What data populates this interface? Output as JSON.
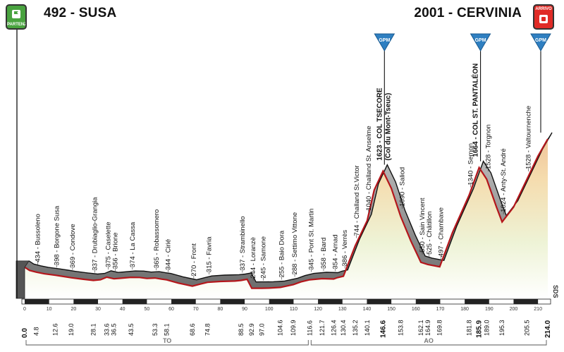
{
  "header": {
    "start_title": "492 - SUSA",
    "finish_title": "2001 - CERVINIA",
    "start_badge": "PARTENZA",
    "finish_badge": "ARRIVO"
  },
  "sponsor_text": "SDS",
  "chart_data": {
    "type": "area",
    "title": "",
    "xlabel": "",
    "ylabel": "",
    "xlim": [
      0,
      214.0
    ],
    "ylim": [
      0,
      2100
    ],
    "start": {
      "km": 0.0,
      "alt": 492,
      "name": "SUSA"
    },
    "finish": {
      "km": 214.0,
      "alt": 2001,
      "name": "CERVINIA"
    },
    "profile": [
      [
        0,
        492
      ],
      [
        2,
        455
      ],
      [
        4.8,
        434
      ],
      [
        8,
        415
      ],
      [
        12.6,
        398
      ],
      [
        16,
        383
      ],
      [
        19.0,
        369
      ],
      [
        24,
        350
      ],
      [
        28.1,
        337
      ],
      [
        31,
        345
      ],
      [
        33.6,
        375
      ],
      [
        36.5,
        356
      ],
      [
        39,
        362
      ],
      [
        43.5,
        374
      ],
      [
        47,
        372
      ],
      [
        50,
        360
      ],
      [
        53.3,
        365
      ],
      [
        56,
        352
      ],
      [
        58.1,
        344
      ],
      [
        63,
        305
      ],
      [
        68.6,
        270
      ],
      [
        72,
        295
      ],
      [
        74.8,
        315
      ],
      [
        80,
        325
      ],
      [
        86,
        330
      ],
      [
        88.5,
        337
      ],
      [
        91,
        350
      ],
      [
        92.9,
        244
      ],
      [
        95,
        245
      ],
      [
        97.0,
        245
      ],
      [
        100,
        247
      ],
      [
        104.6,
        255
      ],
      [
        109.9,
        288
      ],
      [
        113,
        320
      ],
      [
        116.6,
        345
      ],
      [
        121.7,
        358
      ],
      [
        126.4,
        354
      ],
      [
        128,
        370
      ],
      [
        130.4,
        386
      ],
      [
        135.2,
        744
      ],
      [
        140.1,
        1040
      ],
      [
        143,
        1400
      ],
      [
        146.6,
        1623
      ],
      [
        150,
        1420
      ],
      [
        153.8,
        1090
      ],
      [
        158,
        800
      ],
      [
        162.1,
        550
      ],
      [
        164.9,
        525
      ],
      [
        169.8,
        497
      ],
      [
        175,
        900
      ],
      [
        181.8,
        1340
      ],
      [
        185.9,
        1664
      ],
      [
        189.0,
        1528
      ],
      [
        193,
        1200
      ],
      [
        195.3,
        1024
      ],
      [
        200,
        1200
      ],
      [
        205.5,
        1528
      ],
      [
        210,
        1800
      ],
      [
        214.0,
        2001
      ]
    ],
    "places": [
      {
        "km": 4.8,
        "alt": "434",
        "name": "Bussoleno"
      },
      {
        "km": 12.6,
        "alt": "398",
        "name": "Borgone Susa"
      },
      {
        "km": 19.0,
        "alt": "369",
        "name": "Condove"
      },
      {
        "km": 28.1,
        "alt": "337",
        "name": "Drubiaglio-Grangia"
      },
      {
        "km": 33.6,
        "alt": "375",
        "name": "Caselette"
      },
      {
        "km": 36.5,
        "alt": "356",
        "name": "Brione"
      },
      {
        "km": 43.5,
        "alt": "374",
        "name": "La Cassa"
      },
      {
        "km": 53.3,
        "alt": "365",
        "name": "Robassomero"
      },
      {
        "km": 58.1,
        "alt": "344",
        "name": "Cirié"
      },
      {
        "km": 68.6,
        "alt": "270",
        "name": "Front"
      },
      {
        "km": 74.8,
        "alt": "315",
        "name": "Favria"
      },
      {
        "km": 88.5,
        "alt": "337",
        "name": "Strambinello"
      },
      {
        "km": 92.9,
        "alt": "244",
        "name": "Loranzè"
      },
      {
        "km": 97.0,
        "alt": "245",
        "name": "Samone"
      },
      {
        "km": 104.6,
        "alt": "255",
        "name": "Baio Dora"
      },
      {
        "km": 109.9,
        "alt": "288",
        "name": "Settimo Vittone"
      },
      {
        "km": 116.6,
        "alt": "345",
        "name": "Pont St. Martin"
      },
      {
        "km": 121.7,
        "alt": "358",
        "name": "Bard"
      },
      {
        "km": 126.4,
        "alt": "354",
        "name": "Arnad"
      },
      {
        "km": 130.4,
        "alt": "386",
        "name": "Verrès"
      },
      {
        "km": 135.2,
        "alt": "744",
        "name": "Challand St.Victor"
      },
      {
        "km": 140.1,
        "alt": "1040",
        "name": "Challand St. Anselme"
      },
      {
        "km": 153.8,
        "alt": "1090",
        "name": "Saliod"
      },
      {
        "km": 162.1,
        "alt": "550",
        "name": "Sain Vincent"
      },
      {
        "km": 164.9,
        "alt": "525",
        "name": "Châtillon"
      },
      {
        "km": 169.8,
        "alt": "497",
        "name": "Chambave"
      },
      {
        "km": 181.8,
        "alt": "1340",
        "name": "Semon"
      },
      {
        "km": 189.0,
        "alt": "1528",
        "name": "Torgnon"
      },
      {
        "km": 195.3,
        "alt": "1024",
        "name": "Anty-St. André"
      },
      {
        "km": 205.5,
        "alt": "1528",
        "name": "Valtournenche"
      }
    ],
    "climbs": [
      {
        "km": 146.6,
        "alt": "1623",
        "name": "COL TSECORE",
        "sub": "(Col du Mont-Tseuc)",
        "marker": "GPM"
      },
      {
        "km": 185.9,
        "alt": "1664",
        "name": "COL ST. PANTALÉON",
        "marker": "GPM"
      },
      {
        "km": 214.0,
        "marker": "GPM"
      }
    ],
    "scale_ticks": [
      0,
      10,
      20,
      30,
      40,
      50,
      60,
      70,
      80,
      90,
      100,
      110,
      120,
      130,
      140,
      150,
      160,
      170,
      180,
      190,
      200,
      210
    ],
    "km_labels": [
      "0.0",
      "4.8",
      "12.6",
      "19.0",
      "28.1",
      "33.6",
      "36.5",
      "43.5",
      "53.3",
      "58.1",
      "68.6",
      "74.8",
      "88.5",
      "92.9",
      "97.0",
      "104.6",
      "109.9",
      "116.6",
      "121.7",
      "126.4",
      "130.4",
      "135.2",
      "140.1",
      "146.6",
      "153.8",
      "162.1",
      "164.9",
      "169.8",
      "181.8",
      "185.9",
      "189.0",
      "195.3",
      "205.5",
      "214.0"
    ],
    "bold_km_labels": [
      "0.0",
      "146.6",
      "185.9",
      "214.0"
    ],
    "provinces": [
      {
        "label": "TO",
        "from": 0,
        "to": 116.6
      },
      {
        "label": "AO",
        "from": 116.6,
        "to": 214.0
      }
    ],
    "colors": {
      "profile_fill": "#9a9a9a",
      "profile_edge": "#b4161b",
      "ground_low": "#ffffff",
      "ground_high": "#f0c9a0",
      "gpm": "#2e7fc1"
    }
  }
}
